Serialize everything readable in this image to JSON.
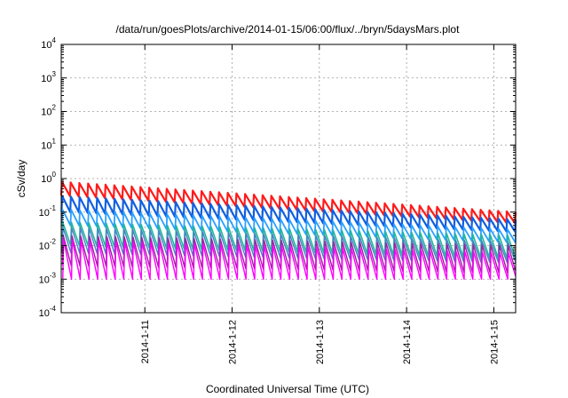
{
  "chart_data": {
    "type": "line",
    "title": "/data/run/goesPlots/archive/2014-01-15/06:00/flux/../bryn/5daysMars.plot",
    "xlabel": "Coordinated Universal Time (UTC)",
    "ylabel": "cSv/day",
    "yscale": "log",
    "ylim": [
      0.0001,
      10000
    ],
    "y_tick_base": "10",
    "y_tick_exponents": [
      "-4",
      "-3",
      "-2",
      "-1",
      "0",
      "1",
      "2",
      "3",
      "4"
    ],
    "xlim": [
      "2014-01-10T01:00",
      "2014-01-15T06:00"
    ],
    "x_tick_labels": [
      "2014-1-11",
      "2014-1-12",
      "2014-1-13",
      "2014-1-14",
      "2014-1-15"
    ],
    "x_tick_dates": [
      "2014-01-11",
      "2014-01-12",
      "2014-01-13",
      "2014-01-14",
      "2014-01-15"
    ],
    "grid": true,
    "legend": "none",
    "sawtooth_period_hours": 2.4,
    "series": [
      {
        "color": "#ff1a1a",
        "peak_start": 0.8,
        "peak_end": 0.1,
        "trough_start": 0.3,
        "trough_end": 0.045
      },
      {
        "color": "#1060e0",
        "peak_start": 0.3,
        "peak_end": 0.06,
        "trough_start": 0.1,
        "trough_end": 0.025
      },
      {
        "color": "#2aa0ff",
        "peak_start": 0.12,
        "peak_end": 0.03,
        "trough_start": 0.04,
        "trough_end": 0.012
      },
      {
        "color": "#20b89a",
        "peak_start": 0.05,
        "peak_end": 0.02,
        "trough_start": 0.01,
        "trough_end": 0.004
      },
      {
        "color": "#4a80c8",
        "peak_start": 0.035,
        "peak_end": 0.013,
        "trough_start": 0.006,
        "trough_end": 0.003
      },
      {
        "color": "#a020a0",
        "peak_start": 0.02,
        "peak_end": 0.01,
        "trough_start": 0.0025,
        "trough_end": 0.0015
      },
      {
        "color": "#ff00ff",
        "peak_start": 0.015,
        "peak_end": 0.006,
        "trough_start": 0.001,
        "trough_end": 0.001
      }
    ]
  }
}
